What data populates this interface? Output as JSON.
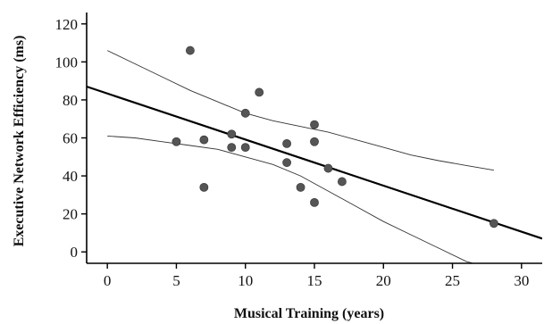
{
  "chart_data": {
    "type": "scatter",
    "xlabel": "Musical Training (years)",
    "ylabel": "Executive Network Efficiency (ms)",
    "xlim": [
      -1.5,
      31.5
    ],
    "ylim": [
      -6,
      126
    ],
    "x_ticks": [
      0,
      5,
      10,
      15,
      20,
      25,
      30
    ],
    "y_ticks": [
      0,
      20,
      40,
      60,
      80,
      100,
      120
    ],
    "grid": false,
    "legend": "none",
    "point_color": "#555555",
    "line_color": "#000000",
    "points": [
      {
        "x": 5,
        "y": 58
      },
      {
        "x": 6,
        "y": 106
      },
      {
        "x": 7,
        "y": 59
      },
      {
        "x": 7,
        "y": 34
      },
      {
        "x": 9,
        "y": 62
      },
      {
        "x": 9,
        "y": 55
      },
      {
        "x": 10,
        "y": 73
      },
      {
        "x": 10,
        "y": 55
      },
      {
        "x": 11,
        "y": 84
      },
      {
        "x": 13,
        "y": 57
      },
      {
        "x": 13,
        "y": 47
      },
      {
        "x": 14,
        "y": 34
      },
      {
        "x": 15,
        "y": 67
      },
      {
        "x": 15,
        "y": 58
      },
      {
        "x": 15,
        "y": 26
      },
      {
        "x": 16,
        "y": 44
      },
      {
        "x": 17,
        "y": 37
      },
      {
        "x": 28,
        "y": 15
      }
    ],
    "fit_line": {
      "x": [
        -1.5,
        31.5
      ],
      "y": [
        87,
        7
      ]
    },
    "ci_upper": {
      "x": [
        0,
        2,
        4,
        6,
        8,
        10,
        12,
        14,
        16,
        18,
        20,
        22,
        24,
        26,
        28
      ],
      "y": [
        106,
        99,
        92,
        85,
        79,
        73,
        69,
        66,
        63,
        59,
        55,
        51,
        48,
        45.5,
        43
      ]
    },
    "ci_lower": {
      "x": [
        0,
        2,
        4,
        6,
        8,
        10,
        12,
        14,
        16,
        18,
        20,
        22,
        24,
        26,
        26.5
      ],
      "y": [
        61,
        60,
        58,
        56,
        54,
        50,
        46,
        40,
        32,
        24,
        16,
        9,
        2,
        -5,
        -6
      ]
    }
  }
}
